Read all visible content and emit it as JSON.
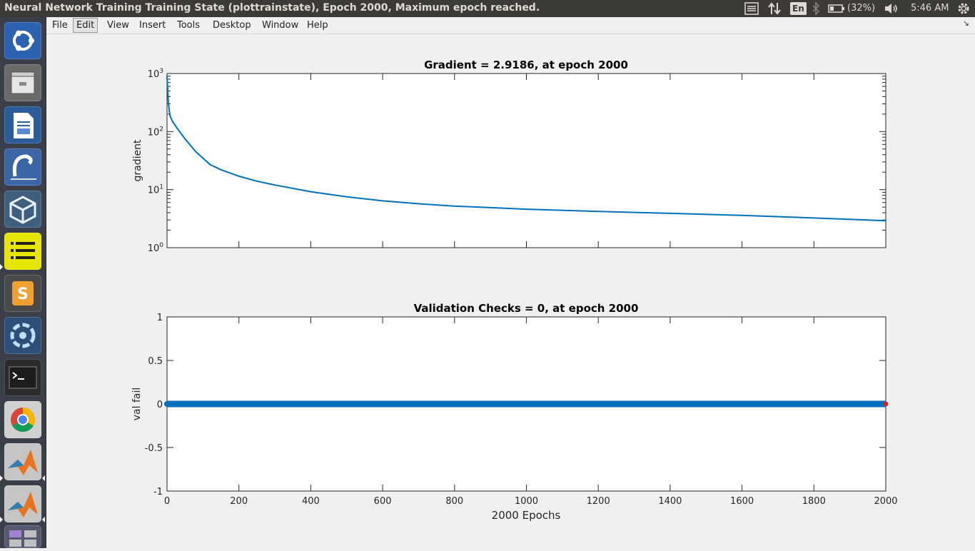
{
  "window": {
    "title": "Neural Network Training Training State (plottrainstate), Epoch 2000, Maximum epoch reached."
  },
  "indicators": {
    "menu_icon": "list-icon",
    "network_icon": "network-updown-icon",
    "keyboard_layout": "En",
    "bluetooth_icon": "bluetooth-icon",
    "battery_percent": "(32%)",
    "volume_icon": "speaker-icon",
    "clock": "5:46 AM",
    "settings_icon": "gear-icon"
  },
  "launcher": {
    "apps": [
      {
        "name": "ubuntu-dash-icon"
      },
      {
        "name": "files-icon"
      },
      {
        "name": "writer-icon"
      },
      {
        "name": "qtiplot-icon"
      },
      {
        "name": "virtualbox-icon"
      },
      {
        "name": "notes-icon"
      },
      {
        "name": "sublime-icon"
      },
      {
        "name": "shutter-icon"
      },
      {
        "name": "terminal-icon"
      },
      {
        "name": "chrome-icon"
      },
      {
        "name": "matlab-icon"
      },
      {
        "name": "matlab-icon"
      },
      {
        "name": "workspace-switcher-icon"
      }
    ]
  },
  "menubar": {
    "items": [
      {
        "label": "File"
      },
      {
        "label": "Edit",
        "active": true
      },
      {
        "label": "View"
      },
      {
        "label": "Insert"
      },
      {
        "label": "Tools"
      },
      {
        "label": "Desktop"
      },
      {
        "label": "Window"
      },
      {
        "label": "Help"
      }
    ]
  },
  "chart_data": [
    {
      "type": "line",
      "title": "Gradient = 2.9186, at epoch 2000",
      "xlabel": "",
      "ylabel": "gradient",
      "yscale": "log",
      "xlim": [
        0,
        2000
      ],
      "ylim": [
        1,
        1000
      ],
      "xticks": [
        0,
        200,
        400,
        600,
        800,
        1000,
        1200,
        1400,
        1600,
        1800,
        2000
      ],
      "ytick_labels": [
        {
          "base": "10",
          "exp": "0",
          "value": 1
        },
        {
          "base": "10",
          "exp": "1",
          "value": 10
        },
        {
          "base": "10",
          "exp": "2",
          "value": 100
        },
        {
          "base": "10",
          "exp": "3",
          "value": 1000
        }
      ],
      "grid": false,
      "line_color": "#0072bd",
      "series": [
        {
          "x": [
            0,
            4,
            8,
            15,
            30,
            50,
            80,
            120,
            150,
            200,
            250,
            300,
            400,
            500,
            600,
            700,
            800,
            900,
            1000,
            1200,
            1400,
            1600,
            1800,
            2000
          ],
          "y": [
            900,
            300,
            190,
            150,
            110,
            75,
            45,
            27,
            22,
            17,
            14,
            12,
            9.2,
            7.5,
            6.4,
            5.7,
            5.2,
            4.9,
            4.6,
            4.2,
            3.9,
            3.6,
            3.25,
            2.9186
          ]
        }
      ]
    },
    {
      "type": "line",
      "title": "Validation Checks = 0, at epoch 2000",
      "xlabel": "2000 Epochs",
      "ylabel": "val fail",
      "xlim": [
        0,
        2000
      ],
      "ylim": [
        -1,
        1
      ],
      "xticks": [
        0,
        200,
        400,
        600,
        800,
        1000,
        1200,
        1400,
        1600,
        1800,
        2000
      ],
      "yticks": [
        -1,
        -0.5,
        0,
        0.5,
        1
      ],
      "ytick_labels": [
        "-1",
        "-0.5",
        "0",
        "0.5",
        "1"
      ],
      "xtick_labels": [
        "0",
        "200",
        "400",
        "600",
        "800",
        "1000",
        "1200",
        "1400",
        "1600",
        "1800",
        "2000"
      ],
      "grid": false,
      "line_color": "#0072bd",
      "marker_color": "#d62728",
      "series": [
        {
          "x": [
            0,
            2000
          ],
          "y": [
            0,
            0
          ]
        }
      ],
      "highlight_point": {
        "x": 2000,
        "y": 0
      }
    }
  ]
}
